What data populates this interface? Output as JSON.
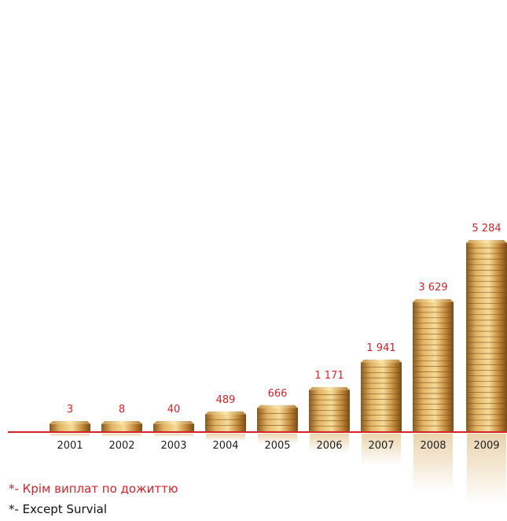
{
  "chart_data": {
    "type": "bar",
    "categories": [
      "2001",
      "2002",
      "2003",
      "2004",
      "2005",
      "2006",
      "2007",
      "2008",
      "2009"
    ],
    "values": [
      3,
      8,
      40,
      489,
      666,
      1171,
      1941,
      3629,
      5284
    ],
    "value_labels": [
      "3",
      "8",
      "40",
      "489",
      "666",
      "1 171",
      "1 941",
      "3 629",
      "5 284"
    ],
    "title": "",
    "xlabel": "",
    "ylabel": "",
    "grid": false,
    "colors": {
      "coin_light": "#f3d48a",
      "coin_mid": "#cf9a45",
      "coin_dark": "#8a5a1f",
      "axis_line": "#d4232b",
      "value_text": "#d4232b"
    }
  },
  "notes": {
    "ukrainian": "*- Крім виплат по дожиттю",
    "english": "*- Except Survial"
  }
}
